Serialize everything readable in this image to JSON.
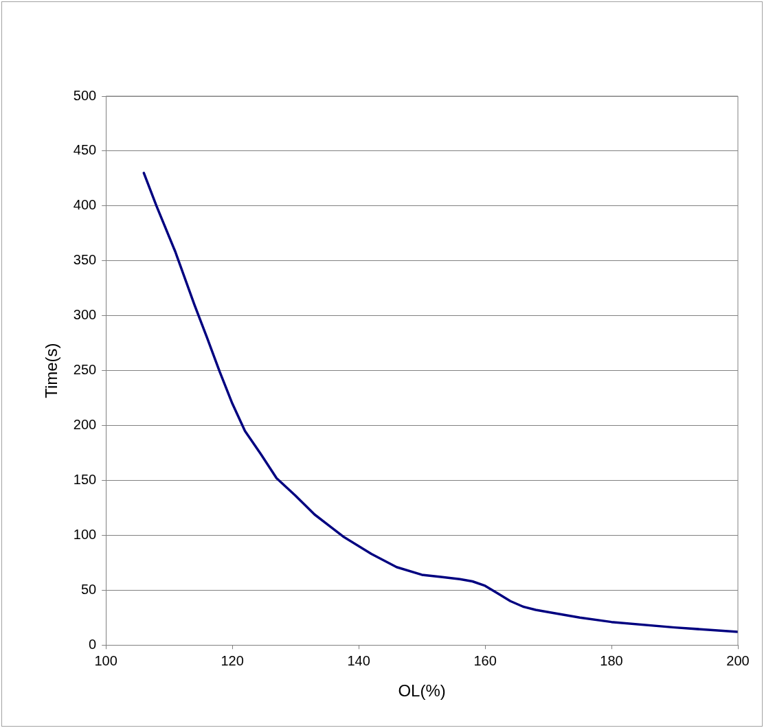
{
  "chart_data": {
    "type": "line",
    "xlabel": "OL(%)",
    "ylabel": "Time(s)",
    "x": [
      106,
      108,
      111,
      114,
      116,
      118,
      120,
      122,
      124.5,
      127,
      130,
      133,
      137.5,
      142,
      146,
      150,
      153,
      156,
      158,
      160,
      162,
      164,
      166,
      168,
      170,
      175,
      180,
      190,
      200
    ],
    "series": [
      {
        "color": "#000080",
        "values": [
          430,
          400,
          358,
          310,
          280,
          249,
          220,
          195,
          174,
          152,
          136,
          119,
          99,
          83,
          71,
          64,
          62,
          60,
          58,
          54,
          47,
          40,
          35,
          32,
          30,
          25,
          21,
          16,
          12
        ]
      }
    ],
    "xlim": [
      100,
      200
    ],
    "xticks": [
      100,
      120,
      140,
      160,
      180,
      200
    ],
    "ylim": [
      0,
      500
    ],
    "yticks": [
      0,
      50,
      100,
      150,
      200,
      250,
      300,
      350,
      400,
      450,
      500
    ],
    "grid": "y",
    "legend": false,
    "marker": "none",
    "line_style": "solid"
  }
}
